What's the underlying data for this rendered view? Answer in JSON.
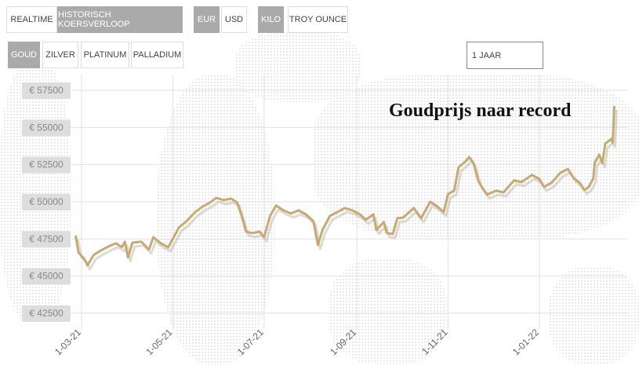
{
  "toolbar": {
    "mode": [
      {
        "label": "REALTIME",
        "active": false
      },
      {
        "label": "HISTORISCH KOERSVERLOOP",
        "active": true
      }
    ],
    "currency": [
      {
        "label": "EUR",
        "active": true
      },
      {
        "label": "USD",
        "active": false
      }
    ],
    "unit": [
      {
        "label": "KILO",
        "active": true
      },
      {
        "label": "TROY OUNCE",
        "active": false
      }
    ],
    "metal": [
      {
        "label": "GOUD",
        "active": true
      },
      {
        "label": "ZILVER",
        "active": false
      },
      {
        "label": "PLATINUM",
        "active": false
      },
      {
        "label": "PALLADIUM",
        "active": false
      }
    ],
    "period": "1 JAAR"
  },
  "colors": {
    "line": "#c8a96e",
    "button_active": "#aaaaaa",
    "grid": "#e2e2e2",
    "label_bg": "#dddddd"
  },
  "chart_data": {
    "type": "line",
    "title": "Goudprijs naar record",
    "xlabel": "",
    "ylabel": "",
    "ylim": [
      42500,
      57500
    ],
    "y_ticks": [
      42500,
      45000,
      47500,
      50000,
      52500,
      55000,
      57500
    ],
    "y_tick_labels": [
      "€ 42500",
      "€ 45000",
      "€ 47500",
      "€ 50000",
      "€ 52500",
      "€ 55000",
      "€ 57500"
    ],
    "x_ticks": [
      "2021-03-01",
      "2021-05-01",
      "2021-07-01",
      "2021-09-01",
      "2021-11-01",
      "2022-01-01"
    ],
    "x_tick_labels": [
      "1-03-21",
      "1-05-21",
      "1-07-21",
      "1-09-21",
      "1-11-21",
      "1-01-22"
    ],
    "grid": true,
    "series": [
      {
        "points": [
          [
            "2021-02-25",
            47730
          ],
          [
            "2021-02-27",
            46570
          ],
          [
            "2021-03-03",
            46140
          ],
          [
            "2021-03-05",
            45720
          ],
          [
            "2021-03-09",
            46410
          ],
          [
            "2021-03-13",
            46670
          ],
          [
            "2021-03-20",
            47040
          ],
          [
            "2021-03-24",
            47200
          ],
          [
            "2021-03-28",
            46940
          ],
          [
            "2021-03-30",
            47310
          ],
          [
            "2021-04-01",
            46250
          ],
          [
            "2021-04-04",
            47250
          ],
          [
            "2021-04-10",
            47310
          ],
          [
            "2021-04-15",
            46780
          ],
          [
            "2021-04-18",
            47620
          ],
          [
            "2021-04-23",
            47200
          ],
          [
            "2021-04-28",
            46940
          ],
          [
            "2021-05-05",
            48260
          ],
          [
            "2021-05-10",
            48680
          ],
          [
            "2021-05-16",
            49310
          ],
          [
            "2021-05-21",
            49680
          ],
          [
            "2021-05-26",
            49950
          ],
          [
            "2021-05-30",
            50260
          ],
          [
            "2021-06-04",
            50110
          ],
          [
            "2021-06-09",
            50210
          ],
          [
            "2021-06-13",
            49950
          ],
          [
            "2021-06-16",
            49050
          ],
          [
            "2021-06-19",
            47990
          ],
          [
            "2021-06-23",
            47890
          ],
          [
            "2021-06-28",
            47990
          ],
          [
            "2021-07-01",
            47620
          ],
          [
            "2021-07-05",
            49050
          ],
          [
            "2021-07-09",
            49740
          ],
          [
            "2021-07-14",
            49420
          ],
          [
            "2021-07-19",
            49210
          ],
          [
            "2021-07-24",
            49420
          ],
          [
            "2021-07-29",
            49150
          ],
          [
            "2021-08-03",
            48680
          ],
          [
            "2021-08-06",
            47090
          ],
          [
            "2021-08-09",
            48100
          ],
          [
            "2021-08-14",
            49050
          ],
          [
            "2021-08-19",
            49310
          ],
          [
            "2021-08-24",
            49580
          ],
          [
            "2021-08-29",
            49420
          ],
          [
            "2021-09-03",
            49150
          ],
          [
            "2021-09-07",
            48790
          ],
          [
            "2021-09-12",
            49150
          ],
          [
            "2021-09-14",
            48100
          ],
          [
            "2021-09-19",
            48630
          ],
          [
            "2021-09-21",
            47890
          ],
          [
            "2021-09-25",
            47830
          ],
          [
            "2021-09-28",
            48890
          ],
          [
            "2021-10-02",
            48940
          ],
          [
            "2021-10-09",
            49580
          ],
          [
            "2021-10-14",
            48890
          ],
          [
            "2021-10-20",
            50000
          ],
          [
            "2021-10-24",
            49740
          ],
          [
            "2021-10-29",
            49310
          ],
          [
            "2021-11-01",
            50530
          ],
          [
            "2021-11-05",
            50740
          ],
          [
            "2021-11-08",
            52320
          ],
          [
            "2021-11-13",
            52750
          ],
          [
            "2021-11-15",
            53010
          ],
          [
            "2021-11-18",
            52590
          ],
          [
            "2021-11-21",
            51430
          ],
          [
            "2021-11-23",
            51060
          ],
          [
            "2021-11-27",
            50480
          ],
          [
            "2021-12-03",
            50740
          ],
          [
            "2021-12-08",
            50630
          ],
          [
            "2021-12-15",
            51430
          ],
          [
            "2021-12-20",
            51320
          ],
          [
            "2021-12-27",
            51800
          ],
          [
            "2022-01-01",
            51530
          ],
          [
            "2022-01-04",
            51000
          ],
          [
            "2022-01-09",
            51270
          ],
          [
            "2022-01-15",
            51950
          ],
          [
            "2022-01-20",
            52200
          ],
          [
            "2022-01-24",
            51580
          ],
          [
            "2022-01-28",
            51270
          ],
          [
            "2022-01-31",
            50790
          ],
          [
            "2022-02-03",
            51000
          ],
          [
            "2022-02-06",
            51580
          ],
          [
            "2022-02-07",
            52640
          ],
          [
            "2022-02-10",
            53170
          ],
          [
            "2022-02-12",
            52590
          ],
          [
            "2022-02-14",
            53910
          ],
          [
            "2022-02-18",
            54230
          ],
          [
            "2022-02-19",
            53960
          ],
          [
            "2022-02-20",
            56440
          ]
        ]
      }
    ]
  }
}
